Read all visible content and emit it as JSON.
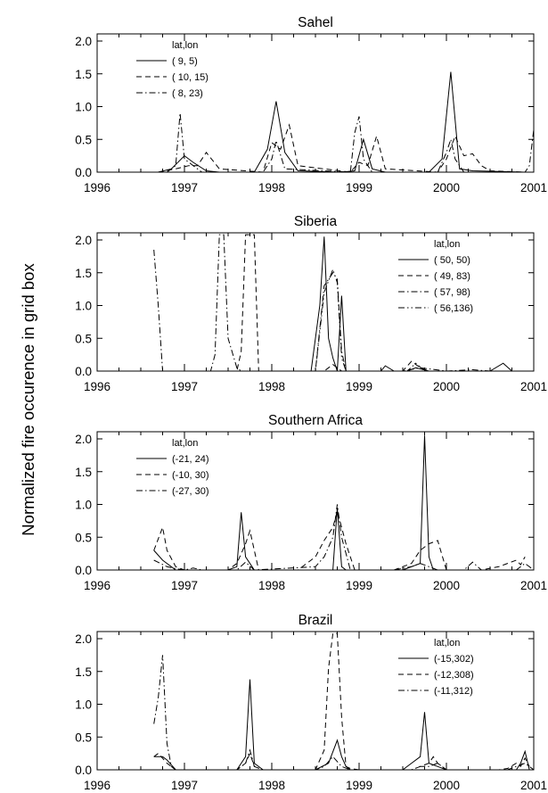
{
  "figure": {
    "ylabel": "Normalized fire occurence in grid box"
  },
  "chart_data": [
    {
      "type": "line",
      "title": "Sahel",
      "xlim": [
        1996,
        2001
      ],
      "ylim": [
        0,
        2.0
      ],
      "x_ticks": [
        "1996",
        "1997",
        "1998",
        "1999",
        "2000",
        "2001"
      ],
      "y_ticks": [
        "0.0",
        "0.5",
        "1.0",
        "1.5",
        "2.0"
      ],
      "legend": {
        "title": "lat,lon",
        "position": "top-left"
      },
      "series": [
        {
          "name": "( 9,  5)",
          "style": "solid",
          "x": [
            1996.7,
            1996.85,
            1997.0,
            1997.1,
            1997.25,
            1997.4,
            1997.8,
            1997.95,
            1998.05,
            1998.15,
            1998.3,
            1998.8,
            1998.95,
            1999.05,
            1999.15,
            1999.3,
            1999.8,
            1999.95,
            2000.05,
            2000.15,
            2000.3,
            2000.9
          ],
          "y": [
            0,
            0.05,
            0.25,
            0.15,
            0.02,
            0,
            0,
            0.35,
            1.08,
            0.3,
            0.02,
            0,
            0.02,
            0.5,
            0.05,
            0,
            0,
            0.2,
            1.53,
            0.05,
            0.02,
            0
          ]
        },
        {
          "name": "( 10, 15)",
          "style": "dashed",
          "x": [
            1996.7,
            1996.9,
            1997.05,
            1997.15,
            1997.25,
            1997.4,
            1997.9,
            1998.0,
            1998.1,
            1998.2,
            1998.3,
            1998.9,
            1999.0,
            1999.1,
            1999.2,
            1999.3,
            1999.9,
            2000.0,
            2000.1,
            2000.2,
            2000.3,
            2000.4,
            2000.5,
            2000.9
          ],
          "y": [
            0,
            0.05,
            0.1,
            0.1,
            0.3,
            0.05,
            0,
            0.45,
            0.35,
            0.72,
            0.1,
            0,
            0.15,
            0.1,
            0.55,
            0.05,
            0,
            0.2,
            0.55,
            0.25,
            0.28,
            0.1,
            0.02,
            0
          ]
        },
        {
          "name": "( 8, 23)",
          "style": "dashdot",
          "x": [
            1996.8,
            1996.9,
            1996.95,
            1997.0,
            1997.1,
            1997.2,
            1997.9,
            1998.0,
            1998.05,
            1998.15,
            1998.9,
            1998.95,
            1999.0,
            1999.05,
            1999.15,
            1999.9,
            2000.0,
            2000.05,
            2000.1,
            2000.2,
            2000.9,
            2000.95,
            2001.0
          ],
          "y": [
            0,
            0.1,
            0.9,
            0.2,
            0.1,
            0,
            0,
            0.2,
            0.48,
            0.05,
            0,
            0.6,
            0.85,
            0.2,
            0,
            0,
            0.3,
            0.5,
            0.2,
            0,
            0,
            0.1,
            0.65
          ]
        }
      ]
    },
    {
      "type": "line",
      "title": "Siberia",
      "xlim": [
        1996,
        2001
      ],
      "ylim": [
        0,
        2.0
      ],
      "x_ticks": [
        "1996",
        "1997",
        "1998",
        "1999",
        "2000",
        "2001"
      ],
      "y_ticks": [
        "0.0",
        "0.5",
        "1.0",
        "1.5",
        "2.0"
      ],
      "legend": {
        "title": "lat,lon",
        "position": "top-right"
      },
      "series": [
        {
          "name": "( 50, 50)",
          "style": "solid",
          "x": [
            1996.7,
            1997.5,
            1998.45,
            1998.55,
            1998.6,
            1998.65,
            1998.7,
            1998.75,
            1998.8,
            1998.85,
            1999.0,
            1999.25,
            1999.3,
            1999.4,
            1999.55,
            1999.65,
            1999.8,
            2000.0,
            2000.5,
            2000.65,
            2000.75,
            2001.0
          ],
          "y": [
            0,
            0,
            0,
            1.0,
            2.05,
            0.5,
            0.2,
            0,
            1.15,
            0,
            0,
            0,
            0.08,
            0,
            0,
            0.05,
            0,
            0,
            0,
            0.12,
            0,
            0
          ]
        },
        {
          "name": "( 49, 83)",
          "style": "dashed",
          "x": [
            1996.7,
            1997.6,
            1997.65,
            1997.7,
            1997.8,
            1997.85,
            1998.5,
            1998.6,
            1998.7,
            1998.8,
            1998.9,
            1999.5,
            1999.6,
            1999.7,
            1999.8,
            2000.0,
            2001.0
          ],
          "y": [
            0,
            0,
            0.3,
            2.1,
            2.1,
            0,
            0,
            0,
            0.1,
            0,
            0,
            0,
            0.15,
            0.05,
            0,
            0,
            0
          ]
        },
        {
          "name": "( 57, 98)",
          "style": "dashdot",
          "x": [
            1996.65,
            1996.7,
            1996.75,
            1996.8,
            1997.3,
            1997.35,
            1997.4,
            1997.45,
            1997.5,
            1997.6,
            1997.65,
            1998.5,
            1998.6,
            1998.7,
            1998.75,
            1998.8,
            1998.85,
            1999.5,
            1999.7,
            2000.0,
            2000.3,
            2000.5,
            2001.0
          ],
          "y": [
            1.85,
            1.0,
            0,
            0,
            0,
            0.25,
            2.1,
            2.1,
            0.5,
            0.05,
            0,
            0,
            1.3,
            1.5,
            1.4,
            0.3,
            0,
            0,
            0.05,
            0,
            0.02,
            0,
            0
          ]
        },
        {
          "name": "( 56,136)",
          "style": "dashdotdot",
          "x": [
            1996.7,
            1997.5,
            1998.5,
            1998.6,
            1998.7,
            1998.75,
            1998.8,
            1998.85,
            1999.0,
            1999.55,
            1999.65,
            1999.75,
            2000.0,
            2001.0
          ],
          "y": [
            0,
            0,
            0,
            1.2,
            1.55,
            1.35,
            0.2,
            0,
            0,
            0,
            0.12,
            0,
            0,
            0
          ]
        }
      ]
    },
    {
      "type": "line",
      "title": "Southern Africa",
      "xlim": [
        1996,
        2001
      ],
      "ylim": [
        0,
        2.0
      ],
      "x_ticks": [
        "1996",
        "1997",
        "1998",
        "1999",
        "2000",
        "2001"
      ],
      "y_ticks": [
        "0.0",
        "0.5",
        "1.0",
        "1.5",
        "2.0"
      ],
      "legend": {
        "title": "lat,lon",
        "position": "top-left"
      },
      "series": [
        {
          "name": "(-21, 24)",
          "style": "solid",
          "x": [
            1996.65,
            1996.75,
            1996.9,
            1997.0,
            1997.5,
            1997.6,
            1997.65,
            1997.7,
            1997.8,
            1997.9,
            1998.6,
            1998.7,
            1998.75,
            1998.8,
            1998.85,
            1999.5,
            1999.6,
            1999.7,
            1999.75,
            1999.8,
            1999.85,
            2001.0
          ],
          "y": [
            0.3,
            0.15,
            0,
            0,
            0,
            0.05,
            0.88,
            0.2,
            0,
            0,
            0,
            0,
            0.95,
            0.05,
            0,
            0,
            0.05,
            0.1,
            2.05,
            0.2,
            0,
            0
          ]
        },
        {
          "name": "(-10, 30)",
          "style": "dashed",
          "x": [
            1996.65,
            1996.75,
            1996.8,
            1996.9,
            1997.0,
            1997.5,
            1997.6,
            1997.7,
            1997.75,
            1997.85,
            1998.3,
            1998.5,
            1998.6,
            1998.7,
            1998.75,
            1998.85,
            1998.95,
            1999.4,
            1999.6,
            1999.7,
            1999.8,
            1999.9,
            2000.0,
            2000.4,
            2000.6,
            2000.7,
            2000.8,
            2000.85,
            2000.9
          ],
          "y": [
            0.3,
            0.65,
            0.3,
            0.05,
            0,
            0,
            0.1,
            0.4,
            0.6,
            0,
            0,
            0.2,
            0.45,
            0.65,
            0.9,
            0.4,
            0,
            0,
            0.1,
            0.3,
            0.4,
            0.45,
            0,
            0,
            0.05,
            0.1,
            0.15,
            0.08,
            0.2
          ]
        },
        {
          "name": "(-27, 30)",
          "style": "dashdot",
          "x": [
            1996.65,
            1996.8,
            1996.9,
            1997.0,
            1997.1,
            1997.2,
            1997.5,
            1997.6,
            1997.7,
            1997.8,
            1998.5,
            1998.6,
            1998.7,
            1998.75,
            1998.8,
            1998.9,
            1999.4,
            1999.6,
            1999.7,
            1999.8,
            1999.9,
            2000.2,
            2000.3,
            2000.4,
            2000.8,
            2000.9,
            2001.0
          ],
          "y": [
            0.15,
            0.05,
            0.02,
            0,
            0.03,
            0,
            0,
            0,
            0.12,
            0,
            0.05,
            0.2,
            0.5,
            1.0,
            0.5,
            0,
            0,
            0.05,
            0.1,
            0.05,
            0,
            0,
            0.12,
            0,
            0,
            0.1,
            0
          ]
        }
      ]
    },
    {
      "type": "line",
      "title": "Brazil",
      "xlim": [
        1996,
        2001
      ],
      "ylim": [
        0,
        2.0
      ],
      "x_ticks": [
        "1996",
        "1997",
        "1998",
        "1999",
        "2000",
        "2001"
      ],
      "y_ticks": [
        "0.0",
        "0.5",
        "1.0",
        "1.5",
        "2.0"
      ],
      "legend": {
        "title": "lat,lon",
        "position": "top-right"
      },
      "series": [
        {
          "name": "(-15,302)",
          "style": "solid",
          "x": [
            1996.65,
            1996.75,
            1996.8,
            1996.9,
            1997.0,
            1997.6,
            1997.7,
            1997.75,
            1997.8,
            1997.9,
            1998.5,
            1998.65,
            1998.75,
            1998.8,
            1998.85,
            1998.9,
            1999.5,
            1999.6,
            1999.7,
            1999.75,
            1999.8,
            1999.9,
            2000.0,
            2000.8,
            2000.85,
            2000.9,
            2000.95
          ],
          "y": [
            0.2,
            0.2,
            0.15,
            0,
            0,
            0,
            0.2,
            1.38,
            0.1,
            0,
            0,
            0.1,
            0.45,
            0.2,
            0.05,
            0,
            0,
            0.1,
            0.2,
            0.88,
            0.1,
            0.05,
            0,
            0,
            0.1,
            0.28,
            0
          ]
        },
        {
          "name": "(-12,308)",
          "style": "dashed",
          "x": [
            1996.65,
            1996.7,
            1996.8,
            1996.85,
            1996.9,
            1997.0,
            1997.6,
            1997.7,
            1997.75,
            1997.8,
            1997.9,
            1998.5,
            1998.6,
            1998.65,
            1998.7,
            1998.75,
            1998.8,
            1998.85,
            1998.9,
            1999.0,
            1999.6,
            1999.7,
            1999.8,
            1999.85,
            1999.9,
            2000.0,
            2000.6,
            2000.7,
            2000.8,
            2000.85,
            2000.9,
            2000.95
          ],
          "y": [
            0.2,
            0.25,
            0.1,
            0.05,
            0,
            0,
            0,
            0.1,
            0.25,
            0.05,
            0,
            0,
            0.3,
            1.55,
            2.1,
            2.1,
            0.8,
            0.05,
            0.02,
            0,
            0,
            0.05,
            0.1,
            0.2,
            0.1,
            0,
            0,
            0.02,
            0.1,
            0.05,
            0.18,
            0.05
          ]
        },
        {
          "name": "(-11,312)",
          "style": "dashdot",
          "x": [
            1996.65,
            1996.7,
            1996.75,
            1996.8,
            1996.85,
            1996.9,
            1997.6,
            1997.7,
            1997.75,
            1997.8,
            1997.9,
            1998.5,
            1998.6,
            1998.7,
            1998.8,
            1998.9,
            1999.6,
            1999.7,
            1999.8,
            1999.9,
            2000.0,
            2000.4,
            2000.7,
            2000.8,
            2000.9,
            2001.0
          ],
          "y": [
            0.7,
            1.1,
            1.75,
            0.4,
            0.05,
            0,
            0,
            0.1,
            0.3,
            0.05,
            0,
            0,
            0.05,
            0.2,
            0.05,
            0,
            0,
            0.05,
            0.05,
            0.1,
            0,
            0,
            0,
            0.05,
            0.1,
            0
          ]
        }
      ]
    }
  ]
}
